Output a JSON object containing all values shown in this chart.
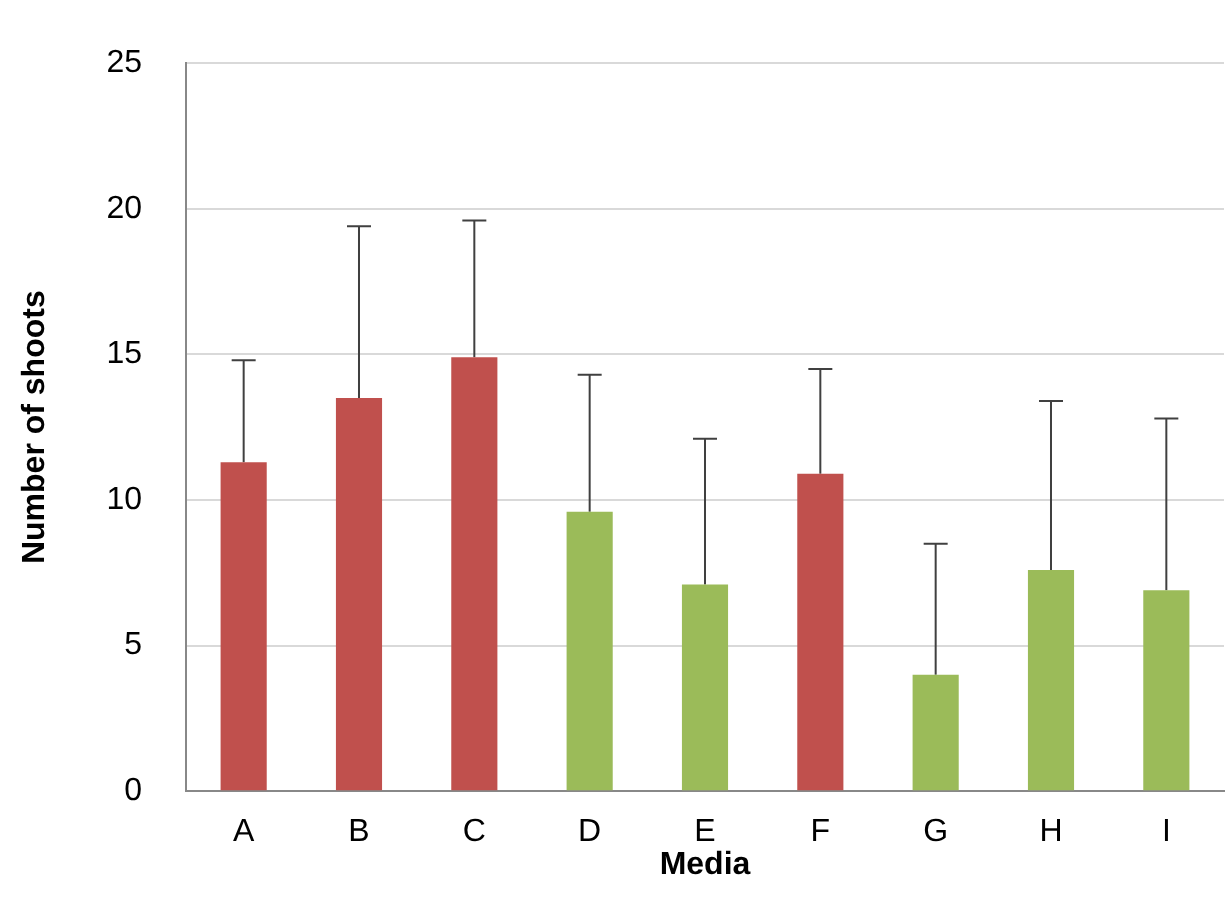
{
  "chart_data": {
    "type": "bar",
    "xlabel": "Media",
    "ylabel": "Number of shoots",
    "categories": [
      "A",
      "B",
      "C",
      "D",
      "E",
      "F",
      "G",
      "H",
      "I"
    ],
    "values": [
      11.3,
      13.5,
      14.9,
      9.6,
      7.1,
      10.9,
      4.0,
      7.6,
      6.9
    ],
    "colors": [
      "#c0504d",
      "#c0504d",
      "#c0504d",
      "#9bbb59",
      "#9bbb59",
      "#c0504d",
      "#9bbb59",
      "#9bbb59",
      "#9bbb59"
    ],
    "errors": [
      [
        11.3,
        14.8
      ],
      [
        13.5,
        19.4
      ],
      [
        14.9,
        19.6
      ],
      [
        9.6,
        14.3
      ],
      [
        7.1,
        12.1
      ],
      [
        10.9,
        14.5
      ],
      [
        4.0,
        8.5
      ],
      [
        7.6,
        13.4
      ],
      [
        6.9,
        12.8
      ]
    ],
    "ylim": [
      0,
      25
    ],
    "yticks": [
      0,
      5,
      10,
      15,
      20,
      25
    ],
    "grid": "y",
    "legend": false
  }
}
